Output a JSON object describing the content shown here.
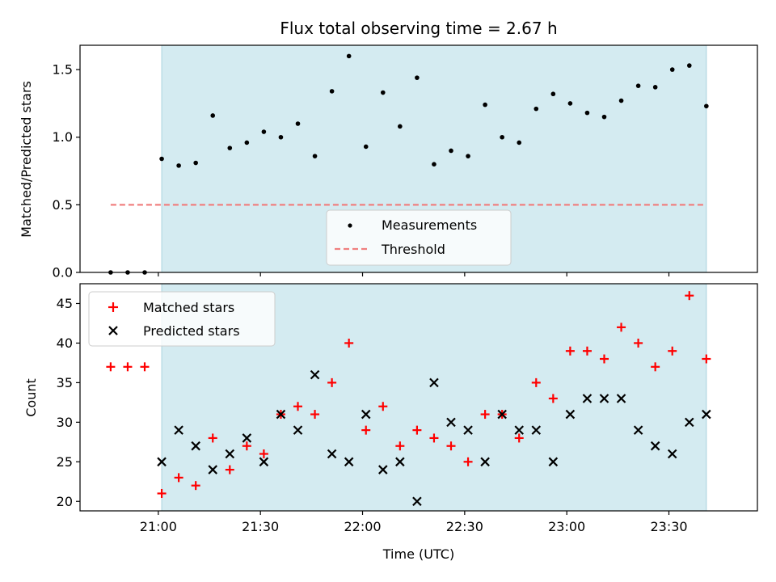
{
  "title": "Flux total observing time = 2.67 h",
  "chart_data": [
    {
      "type": "scatter",
      "ylabel": "Matched/Predicted stars",
      "ylim": [
        0,
        1.68
      ],
      "yticks": [
        0.0,
        0.5,
        1.0,
        1.5
      ],
      "ytick_labels": [
        "0.0",
        "0.5",
        "1.0",
        "1.5"
      ],
      "xlim": [
        "20:37",
        "23:56"
      ],
      "observing_window": [
        "21:01",
        "23:41"
      ],
      "observing_window_color": "#d4ebf1",
      "series": [
        {
          "name": "Measurements",
          "color": "#000000",
          "marker": "dot",
          "x": [
            "20:46",
            "20:51",
            "20:56",
            "21:01",
            "21:06",
            "21:11",
            "21:16",
            "21:21",
            "21:26",
            "21:31",
            "21:36",
            "21:41",
            "21:46",
            "21:51",
            "21:56",
            "22:01",
            "22:06",
            "22:11",
            "22:16",
            "22:21",
            "22:26",
            "22:31",
            "22:36",
            "22:41",
            "22:46",
            "22:51",
            "22:56",
            "23:01",
            "23:06",
            "23:11",
            "23:16",
            "23:21",
            "23:26",
            "23:31",
            "23:36",
            "23:41"
          ],
          "y": [
            0.0,
            0.0,
            0.0,
            0.84,
            0.79,
            0.81,
            1.16,
            0.92,
            0.96,
            1.04,
            1.0,
            1.1,
            0.86,
            1.34,
            1.6,
            0.93,
            1.33,
            1.08,
            1.44,
            0.8,
            0.9,
            0.86,
            1.24,
            1.0,
            0.96,
            1.21,
            1.32,
            1.25,
            1.18,
            1.15,
            1.27,
            1.38,
            1.37,
            1.5,
            1.53,
            1.23
          ]
        },
        {
          "name": "Threshold",
          "color": "#f08080",
          "style": "dashed",
          "x": [
            "20:46",
            "23:41"
          ],
          "y": [
            0.5,
            0.5
          ]
        }
      ],
      "legend": "lower-center"
    },
    {
      "type": "scatter",
      "xlabel": "Time (UTC)",
      "ylabel": "Count",
      "ylim": [
        18.8,
        47.5
      ],
      "yticks": [
        20,
        25,
        30,
        35,
        40,
        45
      ],
      "ytick_labels": [
        "20",
        "25",
        "30",
        "35",
        "40",
        "45"
      ],
      "xlim": [
        "20:37",
        "23:56"
      ],
      "xticks": [
        "21:00",
        "21:30",
        "22:00",
        "22:30",
        "23:00",
        "23:30"
      ],
      "xtick_labels": [
        "21:00",
        "21:30",
        "22:00",
        "22:30",
        "23:00",
        "23:30"
      ],
      "observing_window": [
        "21:01",
        "23:41"
      ],
      "observing_window_color": "#d4ebf1",
      "series": [
        {
          "name": "Matched stars",
          "color": "#ff0000",
          "marker": "plus",
          "x": [
            "20:46",
            "20:51",
            "20:56",
            "21:01",
            "21:06",
            "21:11",
            "21:16",
            "21:21",
            "21:26",
            "21:31",
            "21:36",
            "21:41",
            "21:46",
            "21:51",
            "21:56",
            "22:01",
            "22:06",
            "22:11",
            "22:16",
            "22:21",
            "22:26",
            "22:31",
            "22:36",
            "22:41",
            "22:46",
            "22:51",
            "22:56",
            "23:01",
            "23:06",
            "23:11",
            "23:16",
            "23:21",
            "23:26",
            "23:31",
            "23:36",
            "23:41"
          ],
          "y": [
            37,
            37,
            37,
            21,
            23,
            22,
            28,
            24,
            27,
            26,
            31,
            32,
            31,
            35,
            40,
            29,
            32,
            27,
            29,
            28,
            27,
            25,
            31,
            31,
            28,
            35,
            33,
            39,
            39,
            38,
            42,
            40,
            37,
            39,
            46,
            38
          ]
        },
        {
          "name": "Predicted stars",
          "color": "#000000",
          "marker": "x",
          "x": [
            "21:01",
            "21:06",
            "21:11",
            "21:16",
            "21:21",
            "21:26",
            "21:31",
            "21:36",
            "21:41",
            "21:46",
            "21:51",
            "21:56",
            "22:01",
            "22:06",
            "22:11",
            "22:16",
            "22:21",
            "22:26",
            "22:31",
            "22:36",
            "22:41",
            "22:46",
            "22:51",
            "22:56",
            "23:01",
            "23:06",
            "23:11",
            "23:16",
            "23:21",
            "23:26",
            "23:31",
            "23:36",
            "23:41"
          ],
          "y": [
            25,
            29,
            27,
            24,
            26,
            28,
            25,
            31,
            29,
            36,
            26,
            25,
            31,
            24,
            25,
            20,
            35,
            30,
            29,
            25,
            31,
            29,
            29,
            25,
            31,
            33,
            33,
            33,
            29,
            27,
            26,
            30,
            31
          ]
        }
      ],
      "legend": "upper-left"
    }
  ]
}
